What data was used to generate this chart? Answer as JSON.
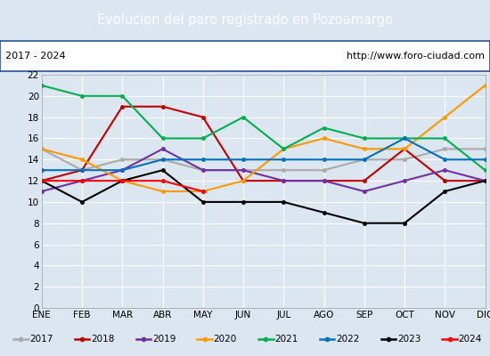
{
  "title": "Evolucion del paro registrado en Pozoamargo",
  "title_bg": "#4472c4",
  "subtitle_left": "2017 - 2024",
  "subtitle_right": "http://www.foro-ciudad.com",
  "months": [
    "ENE",
    "FEB",
    "MAR",
    "ABR",
    "MAY",
    "JUN",
    "JUL",
    "AGO",
    "SEP",
    "OCT",
    "NOV",
    "DIC"
  ],
  "ylim": [
    0,
    22
  ],
  "yticks": [
    0,
    2,
    4,
    6,
    8,
    10,
    12,
    14,
    16,
    18,
    20,
    22
  ],
  "series": {
    "2017": {
      "color": "#aaaaaa",
      "data": [
        15,
        13,
        14,
        14,
        13,
        13,
        13,
        13,
        14,
        14,
        15,
        15
      ]
    },
    "2018": {
      "color": "#c00000",
      "data": [
        12,
        13,
        19,
        19,
        18,
        12,
        12,
        12,
        12,
        15,
        12,
        12
      ]
    },
    "2019": {
      "color": "#7030a0",
      "data": [
        11,
        12,
        13,
        15,
        13,
        13,
        12,
        12,
        11,
        12,
        13,
        12
      ]
    },
    "2020": {
      "color": "#ff9900",
      "data": [
        15,
        14,
        12,
        11,
        11,
        12,
        15,
        16,
        15,
        15,
        18,
        21
      ]
    },
    "2021": {
      "color": "#00b050",
      "data": [
        21,
        20,
        20,
        16,
        16,
        18,
        15,
        17,
        16,
        16,
        16,
        13
      ]
    },
    "2022": {
      "color": "#0070c0",
      "data": [
        13,
        13,
        13,
        14,
        14,
        14,
        14,
        14,
        14,
        16,
        14,
        14
      ]
    },
    "2023": {
      "color": "#000000",
      "data": [
        12,
        10,
        12,
        13,
        10,
        10,
        10,
        9,
        8,
        8,
        11,
        12
      ]
    },
    "2024": {
      "color": "#ff0000",
      "data": [
        12,
        12,
        12,
        12,
        11,
        null,
        null,
        null,
        null,
        null,
        null,
        null
      ]
    }
  },
  "legend_order": [
    "2017",
    "2018",
    "2019",
    "2020",
    "2021",
    "2022",
    "2023",
    "2024"
  ],
  "bg_color": "#dce6f1",
  "plot_bg": "#dce6f1",
  "grid_color": "#ffffff",
  "border_color": "#2f4f8f"
}
